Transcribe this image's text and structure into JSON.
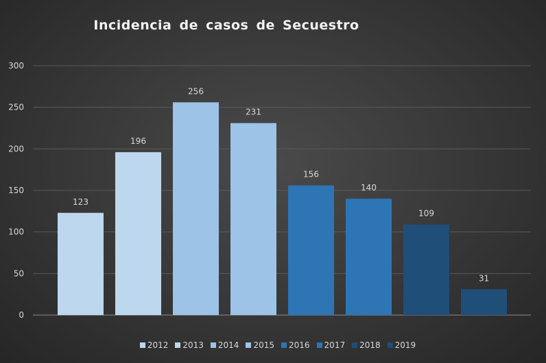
{
  "chart_data": {
    "type": "bar",
    "title": "Incidencia  de casos de Secuestro",
    "categories": [
      "2012",
      "2013",
      "2014",
      "2015",
      "2016",
      "2017",
      "2018",
      "2019"
    ],
    "values": [
      123,
      196,
      256,
      231,
      156,
      140,
      109,
      31
    ],
    "colors": [
      "#bdd7ee",
      "#bdd7ee",
      "#9dc3e6",
      "#9dc3e6",
      "#2e75b6",
      "#2e75b6",
      "#1f4e79",
      "#1f4e79"
    ],
    "ylim": [
      0,
      300
    ],
    "yticks": [
      0,
      50,
      100,
      150,
      200,
      250,
      300
    ],
    "grid": true,
    "legend": "bottom",
    "xlabel": "",
    "ylabel": ""
  }
}
